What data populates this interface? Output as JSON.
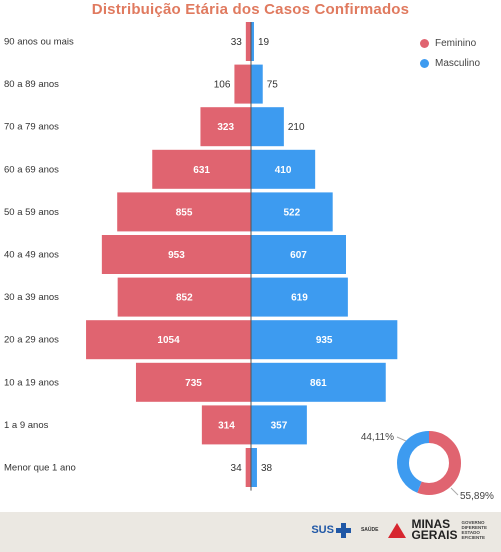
{
  "title": "Distribuição Etária dos Casos Confirmados",
  "legend": {
    "feminino": "Feminino",
    "masculino": "Masculino"
  },
  "colors": {
    "feminino": "#e06470",
    "masculino": "#3d9bf0",
    "title": "#e07a5f",
    "footer": "#ebe8e2"
  },
  "chart_data": [
    {
      "type": "bar",
      "orientation": "horizontal",
      "layout": "population-pyramid",
      "title": "Distribuição Etária dos Casos Confirmados",
      "categories": [
        "90 anos ou mais",
        "80 a 89 anos",
        "70 a 79 anos",
        "60 a 69 anos",
        "50 a 59 anos",
        "40 a 49 anos",
        "30 a 39 anos",
        "20 a 29 anos",
        "10 a 19 anos",
        "1 a 9 anos",
        "Menor que 1 ano"
      ],
      "series": [
        {
          "name": "Feminino",
          "side": "left",
          "values": [
            33,
            106,
            323,
            631,
            855,
            953,
            852,
            1054,
            735,
            314,
            34
          ]
        },
        {
          "name": "Masculino",
          "side": "right",
          "values": [
            19,
            75,
            210,
            410,
            522,
            607,
            619,
            935,
            861,
            357,
            38
          ]
        }
      ],
      "legend_position": "top-right"
    },
    {
      "type": "pie",
      "style": "donut",
      "slices": [
        {
          "name": "Feminino",
          "value": 55.89,
          "label": "55,89%"
        },
        {
          "name": "Masculino",
          "value": 44.11,
          "label": "44,11%"
        }
      ]
    }
  ],
  "footer": {
    "sus": "SUS",
    "saude": "SAÚDE",
    "brand": [
      "MINAS",
      "GERAIS"
    ],
    "gov": [
      "GOVERNO",
      "DIFERENTE",
      "ESTADO",
      "EFICIENTE"
    ]
  }
}
